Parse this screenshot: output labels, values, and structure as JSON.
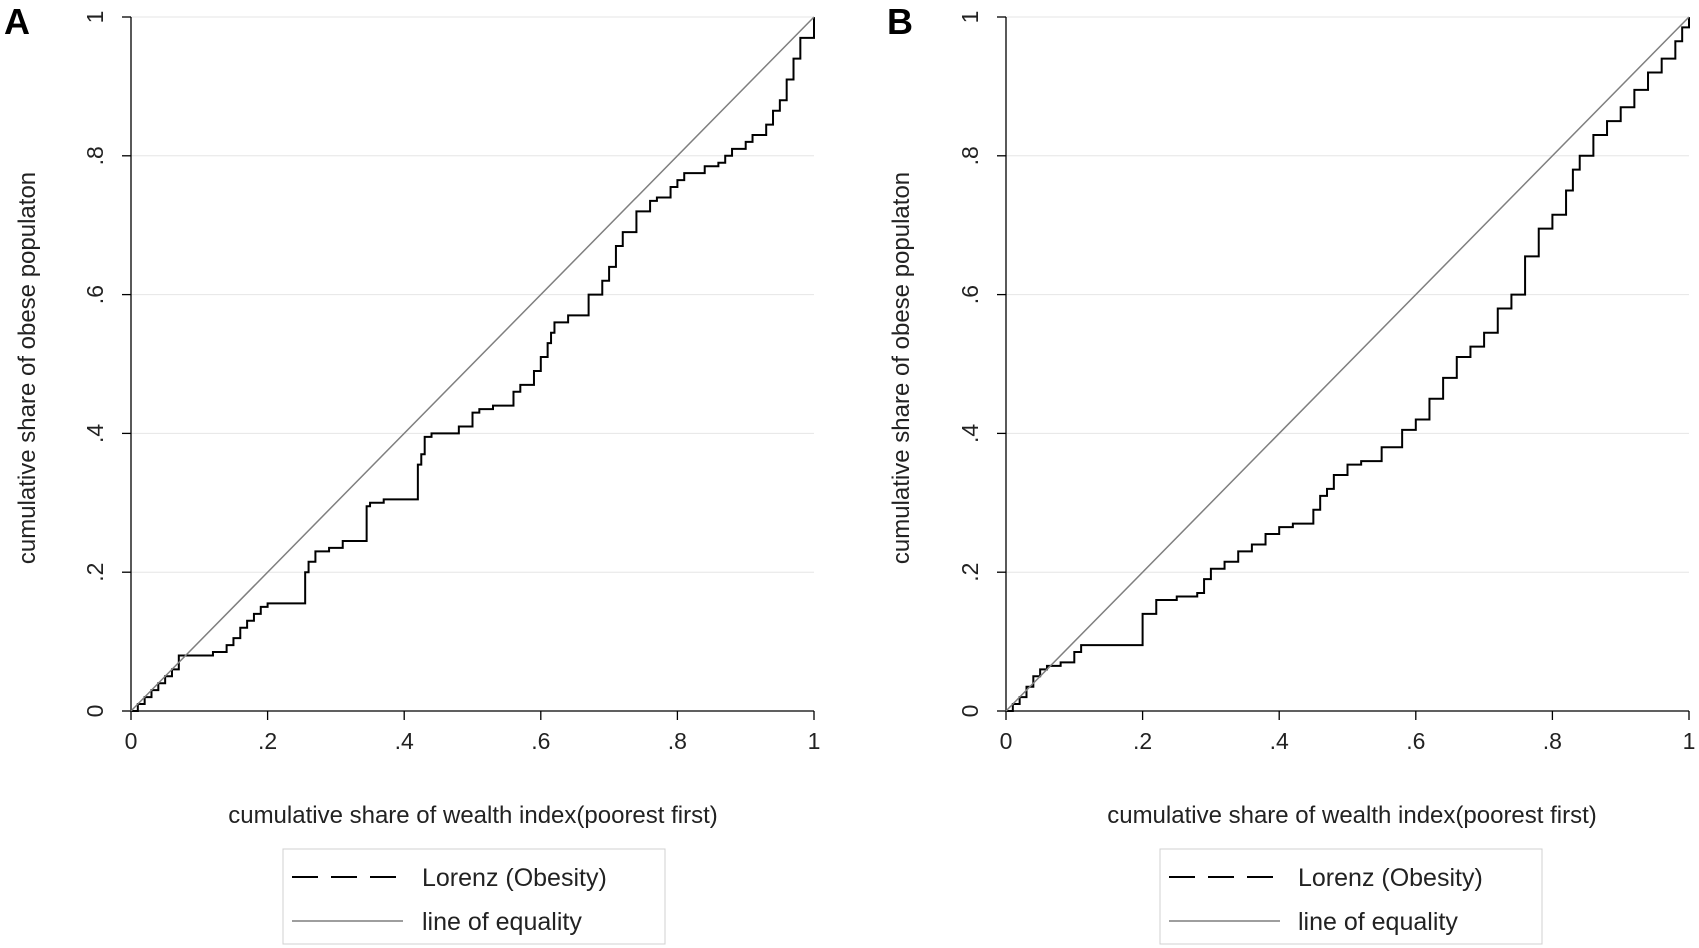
{
  "colors": {
    "background": "#ffffff",
    "lorenz": "#000000",
    "equality": "#7f7f7f",
    "grid": "#e6e6e6",
    "axis": "#000000"
  },
  "chart_data": [
    {
      "panel": "A",
      "type": "line",
      "xlabel": "cumulative share of wealth index(poorest first)",
      "ylabel": "cumulative share of obese populaton",
      "xlim": [
        0,
        1
      ],
      "ylim": [
        0,
        1
      ],
      "xticks": [
        "0",
        ".2",
        ".4",
        ".6",
        ".8",
        "1"
      ],
      "yticks": [
        "0",
        ".2",
        ".4",
        ".6",
        ".8",
        "1"
      ],
      "legend": [
        "Lorenz (Obesity)",
        "line of equality"
      ],
      "series": [
        {
          "name": "Lorenz (Obesity)",
          "style": "step",
          "x": [
            0,
            0.01,
            0.02,
            0.03,
            0.04,
            0.05,
            0.06,
            0.07,
            0.12,
            0.14,
            0.15,
            0.16,
            0.17,
            0.18,
            0.19,
            0.2,
            0.21,
            0.255,
            0.26,
            0.27,
            0.29,
            0.31,
            0.345,
            0.35,
            0.37,
            0.39,
            0.42,
            0.425,
            0.43,
            0.44,
            0.48,
            0.5,
            0.51,
            0.53,
            0.56,
            0.57,
            0.59,
            0.6,
            0.61,
            0.615,
            0.62,
            0.64,
            0.67,
            0.69,
            0.7,
            0.71,
            0.72,
            0.74,
            0.76,
            0.77,
            0.79,
            0.8,
            0.81,
            0.82,
            0.84,
            0.86,
            0.87,
            0.88,
            0.9,
            0.91,
            0.93,
            0.94,
            0.95,
            0.96,
            0.97,
            0.98,
            1.0
          ],
          "y": [
            0,
            0.01,
            0.02,
            0.03,
            0.04,
            0.05,
            0.06,
            0.08,
            0.085,
            0.095,
            0.105,
            0.12,
            0.13,
            0.14,
            0.15,
            0.155,
            0.155,
            0.2,
            0.215,
            0.23,
            0.235,
            0.245,
            0.295,
            0.3,
            0.305,
            0.305,
            0.355,
            0.37,
            0.395,
            0.4,
            0.41,
            0.43,
            0.435,
            0.44,
            0.46,
            0.47,
            0.49,
            0.51,
            0.53,
            0.545,
            0.56,
            0.57,
            0.6,
            0.62,
            0.64,
            0.67,
            0.69,
            0.72,
            0.735,
            0.74,
            0.755,
            0.765,
            0.775,
            0.775,
            0.785,
            0.79,
            0.8,
            0.81,
            0.82,
            0.83,
            0.845,
            0.865,
            0.88,
            0.91,
            0.94,
            0.97,
            1.0
          ]
        },
        {
          "name": "line of equality",
          "x": [
            0,
            1
          ],
          "y": [
            0,
            1
          ]
        }
      ]
    },
    {
      "panel": "B",
      "type": "line",
      "xlabel": "cumulative share of wealth index(poorest first)",
      "ylabel": "cumulative share of obese populaton",
      "xlim": [
        0,
        1
      ],
      "ylim": [
        0,
        1
      ],
      "xticks": [
        "0",
        ".2",
        ".4",
        ".6",
        ".8",
        "1"
      ],
      "yticks": [
        "0",
        ".2",
        ".4",
        ".6",
        ".8",
        "1"
      ],
      "legend": [
        "Lorenz (Obesity)",
        "line of equality"
      ],
      "series": [
        {
          "name": "Lorenz (Obesity)",
          "style": "step",
          "x": [
            0,
            0.01,
            0.02,
            0.03,
            0.04,
            0.05,
            0.06,
            0.08,
            0.1,
            0.11,
            0.19,
            0.2,
            0.22,
            0.25,
            0.28,
            0.29,
            0.3,
            0.32,
            0.34,
            0.36,
            0.38,
            0.4,
            0.42,
            0.45,
            0.46,
            0.47,
            0.48,
            0.5,
            0.52,
            0.55,
            0.58,
            0.6,
            0.62,
            0.64,
            0.66,
            0.68,
            0.7,
            0.72,
            0.74,
            0.76,
            0.78,
            0.8,
            0.82,
            0.83,
            0.84,
            0.86,
            0.88,
            0.9,
            0.92,
            0.94,
            0.96,
            0.98,
            0.99,
            1.0
          ],
          "y": [
            0,
            0.01,
            0.02,
            0.035,
            0.05,
            0.06,
            0.065,
            0.07,
            0.085,
            0.095,
            0.095,
            0.14,
            0.16,
            0.165,
            0.17,
            0.19,
            0.205,
            0.215,
            0.23,
            0.24,
            0.255,
            0.265,
            0.27,
            0.29,
            0.31,
            0.32,
            0.34,
            0.355,
            0.36,
            0.38,
            0.405,
            0.42,
            0.45,
            0.48,
            0.51,
            0.525,
            0.545,
            0.58,
            0.6,
            0.655,
            0.695,
            0.715,
            0.75,
            0.78,
            0.8,
            0.83,
            0.85,
            0.87,
            0.895,
            0.92,
            0.94,
            0.965,
            0.985,
            1.0
          ]
        },
        {
          "name": "line of equality",
          "x": [
            0,
            1
          ],
          "y": [
            0,
            1
          ]
        }
      ]
    }
  ]
}
